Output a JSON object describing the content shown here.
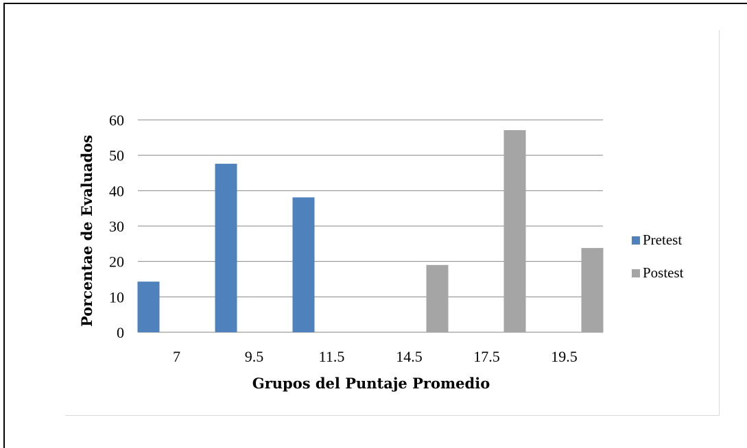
{
  "chart_data": {
    "type": "bar",
    "categories": [
      "7",
      "9.5",
      "11.5",
      "14.5",
      "17.5",
      "19.5"
    ],
    "series": [
      {
        "name": "Pretest",
        "color": "#4f81bd",
        "values": [
          14.3,
          47.6,
          38.1,
          null,
          null,
          null
        ]
      },
      {
        "name": "Postest",
        "color": "#a5a5a5",
        "values": [
          null,
          null,
          null,
          19.0,
          57.1,
          23.8
        ]
      }
    ],
    "xlabel": "Grupos del Puntaje Promedio",
    "ylabel": "Porcentae de Evaluados",
    "ylim": [
      0,
      60
    ],
    "yticks": [
      0,
      10,
      20,
      30,
      40,
      50,
      60
    ],
    "grid": true,
    "legend_position": "right"
  }
}
